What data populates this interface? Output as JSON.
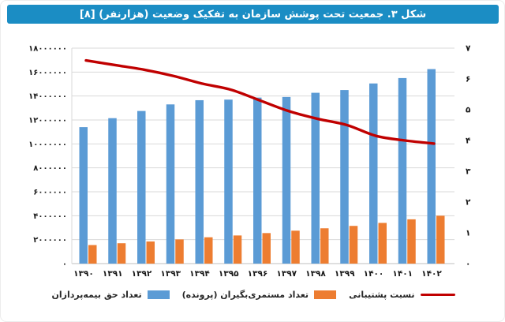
{
  "title": {
    "text": "شکل ۳. جمعیت تحت پوشش سازمان به تفکیک وضعیت (هزارنفر) [۸]"
  },
  "colors": {
    "title_bar_bg": "#1B8DC4",
    "title_text": "#FFFFFF",
    "premium_payers_bar": "#5B9BD5",
    "pensioners_bar": "#ED7D31",
    "support_ratio_line": "#C00000",
    "gridline": "#D9D9D9",
    "axis_line": "#BFBFBF",
    "axis_text": "#1A1A1A"
  },
  "chart_data": {
    "type": "bar",
    "subtype": "combo-column-and-line-two-axes",
    "title": "شکل ۳. جمعیت تحت پوشش سازمان به تفکیک وضعیت (هزارنفر) [۸]",
    "categories": [
      "۱۳۹۰",
      "۱۳۹۱",
      "۱۳۹۲",
      "۱۳۹۳",
      "۱۳۹۴",
      "۱۳۹۵",
      "۱۳۹۶",
      "۱۳۹۷",
      "۱۳۹۸",
      "۱۳۹۹",
      "۱۴۰۰",
      "۱۴۰۱",
      "۱۴۰۲"
    ],
    "categories_western": [
      1390,
      1391,
      1392,
      1393,
      1394,
      1395,
      1396,
      1397,
      1398,
      1399,
      1400,
      1401,
      1402
    ],
    "series": [
      {
        "name": "تعداد حق بیمه‌پردازان",
        "type": "bar",
        "axis": "left",
        "color": "#5B9BD5",
        "values": [
          11400000,
          12150000,
          12750000,
          13300000,
          13650000,
          13700000,
          13870000,
          13920000,
          14270000,
          14500000,
          15050000,
          15500000,
          16250000
        ]
      },
      {
        "name": "تعداد مستمری‌بگیران (پرونده)",
        "type": "bar",
        "axis": "left",
        "color": "#ED7D31",
        "values": [
          1550000,
          1700000,
          1850000,
          2020000,
          2200000,
          2350000,
          2550000,
          2750000,
          2950000,
          3150000,
          3400000,
          3700000,
          4000000
        ]
      },
      {
        "name": "نسبت پشتیبانی",
        "type": "line",
        "axis": "right",
        "color": "#C00000",
        "values": [
          6.6,
          6.45,
          6.3,
          6.1,
          5.85,
          5.65,
          5.3,
          4.95,
          4.7,
          4.5,
          4.15,
          4.0,
          3.9
        ]
      }
    ],
    "left_axis": {
      "min": 0,
      "max": 18000000,
      "step": 2000000,
      "tick_labels": [
        "۰",
        "۲۰۰۰۰۰۰",
        "۴۰۰۰۰۰۰",
        "۶۰۰۰۰۰۰",
        "۸۰۰۰۰۰۰",
        "۱۰۰۰۰۰۰۰",
        "۱۲۰۰۰۰۰۰",
        "۱۴۰۰۰۰۰۰",
        "۱۶۰۰۰۰۰۰",
        "۱۸۰۰۰۰۰۰"
      ]
    },
    "right_axis": {
      "min": 0,
      "max": 7,
      "step": 1,
      "tick_labels": [
        "۰",
        "۱",
        "۲",
        "۳",
        "۴",
        "۵",
        "۶",
        "۷"
      ]
    },
    "grid": true,
    "legend_position": "bottom"
  }
}
